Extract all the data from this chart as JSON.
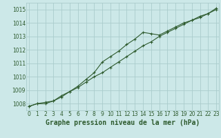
{
  "title": "Graphe pression niveau de la mer (hPa)",
  "bg_color": "#cce8e8",
  "grid_color": "#aacccc",
  "line_color": "#2d5a2d",
  "x_values": [
    0,
    1,
    2,
    3,
    4,
    5,
    6,
    7,
    8,
    9,
    10,
    11,
    12,
    13,
    14,
    15,
    16,
    17,
    18,
    19,
    20,
    21,
    22,
    23
  ],
  "line1": [
    1007.8,
    1008.0,
    1008.1,
    1008.2,
    1008.6,
    1008.9,
    1009.3,
    1009.8,
    1010.3,
    1011.1,
    1011.5,
    1011.9,
    1012.4,
    1012.8,
    1013.3,
    1013.2,
    1013.1,
    1013.4,
    1013.7,
    1014.0,
    1014.2,
    1014.4,
    1014.7,
    1015.0
  ],
  "line2": [
    1007.8,
    1008.0,
    1008.0,
    1008.2,
    1008.5,
    1008.9,
    1009.2,
    1009.6,
    1010.0,
    1010.3,
    1010.7,
    1011.1,
    1011.5,
    1011.9,
    1012.3,
    1012.6,
    1013.0,
    1013.3,
    1013.6,
    1013.9,
    1014.2,
    1014.5,
    1014.7,
    1015.1
  ],
  "ylim": [
    1007.5,
    1015.5
  ],
  "yticks": [
    1008,
    1009,
    1010,
    1011,
    1012,
    1013,
    1014,
    1015
  ],
  "xticks": [
    0,
    1,
    2,
    3,
    4,
    5,
    6,
    7,
    8,
    9,
    10,
    11,
    12,
    13,
    14,
    15,
    16,
    17,
    18,
    19,
    20,
    21,
    22,
    23
  ],
  "title_fontsize": 7.0,
  "tick_fontsize": 5.5,
  "xlim": [
    -0.3,
    23.3
  ]
}
